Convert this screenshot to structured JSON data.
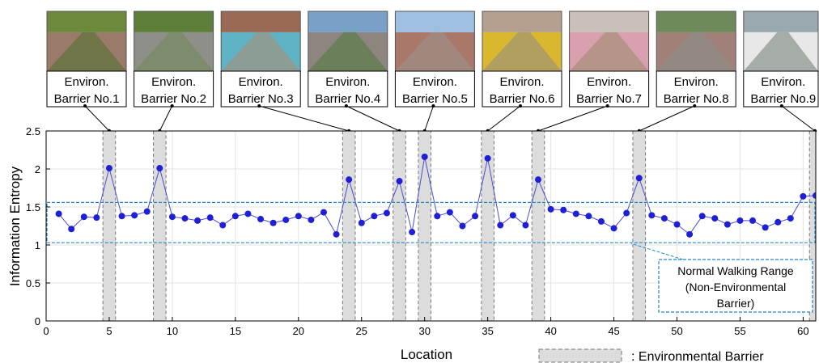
{
  "chart_data": {
    "type": "scatter",
    "xlabel": "Location",
    "ylabel": "Information Entropy",
    "xlim": [
      0,
      61
    ],
    "ylim": [
      0,
      2.5
    ],
    "x_ticks": [
      0,
      5,
      10,
      15,
      20,
      25,
      30,
      35,
      40,
      45,
      50,
      55,
      60
    ],
    "y_ticks": [
      0,
      0.5,
      1,
      1.5,
      2,
      2.5
    ],
    "y_tick_labels": [
      "0",
      "0.5",
      "1",
      "1.5",
      "2",
      "2.5"
    ],
    "grid": true,
    "colors": {
      "points": "#1f1fd6",
      "line": "#4b4bd8",
      "range_box": "#1e88c8",
      "barrier_fill": "#dcdcdc",
      "barrier_edge": "#777777"
    },
    "series": [
      {
        "x": [
          1,
          2,
          3,
          4,
          5,
          6,
          7,
          8,
          9,
          10,
          11,
          12,
          13,
          14,
          15,
          16,
          17,
          18,
          19,
          20,
          21,
          22,
          23,
          24,
          25,
          26,
          27,
          28,
          29,
          30,
          31,
          32,
          33,
          34,
          35,
          36,
          37,
          38,
          39,
          40,
          41,
          42,
          43,
          44,
          45,
          46,
          47,
          48,
          49,
          50,
          51,
          52,
          53,
          54,
          55,
          56,
          57,
          58,
          59,
          60,
          61
        ],
        "values": [
          1.41,
          1.21,
          1.37,
          1.36,
          2.01,
          1.38,
          1.39,
          1.44,
          2.01,
          1.37,
          1.35,
          1.32,
          1.36,
          1.26,
          1.38,
          1.41,
          1.34,
          1.29,
          1.33,
          1.38,
          1.33,
          1.43,
          1.14,
          1.86,
          1.29,
          1.38,
          1.42,
          1.84,
          1.17,
          2.16,
          1.38,
          1.43,
          1.25,
          1.38,
          2.14,
          1.26,
          1.39,
          1.26,
          1.86,
          1.47,
          1.46,
          1.41,
          1.38,
          1.31,
          1.22,
          1.42,
          1.88,
          1.39,
          1.35,
          1.27,
          1.14,
          1.38,
          1.35,
          1.27,
          1.32,
          1.32,
          1.23,
          1.3,
          1.35,
          1.64,
          1.65
        ]
      }
    ],
    "barrier_locations": [
      5,
      9,
      24,
      28,
      30,
      35,
      39,
      47,
      61
    ],
    "normal_range": [
      1.03,
      1.56
    ],
    "normal_range_label": [
      "Normal Walking Range",
      "(Non-Environmental",
      "Barrier)"
    ],
    "legend_label": ": Environmental Barrier",
    "barriers": [
      {
        "line1": "Environ.",
        "line2": "Barrier No.1",
        "location": 5,
        "scene": "brick-path-green"
      },
      {
        "line1": "Environ.",
        "line2": "Barrier No.2",
        "location": 9,
        "scene": "brick-path-bird"
      },
      {
        "line1": "Environ.",
        "line2": "Barrier No.3",
        "location": 24,
        "scene": "pool-edge"
      },
      {
        "line1": "Environ.",
        "line2": "Barrier No.4",
        "location": 28,
        "scene": "street-trees"
      },
      {
        "line1": "Environ.",
        "line2": "Barrier No.5",
        "location": 30,
        "scene": "alley-buildings"
      },
      {
        "line1": "Environ.",
        "line2": "Barrier No.6",
        "location": 35,
        "scene": "tactile-paving"
      },
      {
        "line1": "Environ.",
        "line2": "Barrier No.7",
        "location": 39,
        "scene": "trash-pile"
      },
      {
        "line1": "Environ.",
        "line2": "Barrier No.8",
        "location": 47,
        "scene": "curved-sidewalk"
      },
      {
        "line1": "Environ.",
        "line2": "Barrier No.9",
        "location": 61,
        "scene": "crosswalk"
      }
    ]
  }
}
